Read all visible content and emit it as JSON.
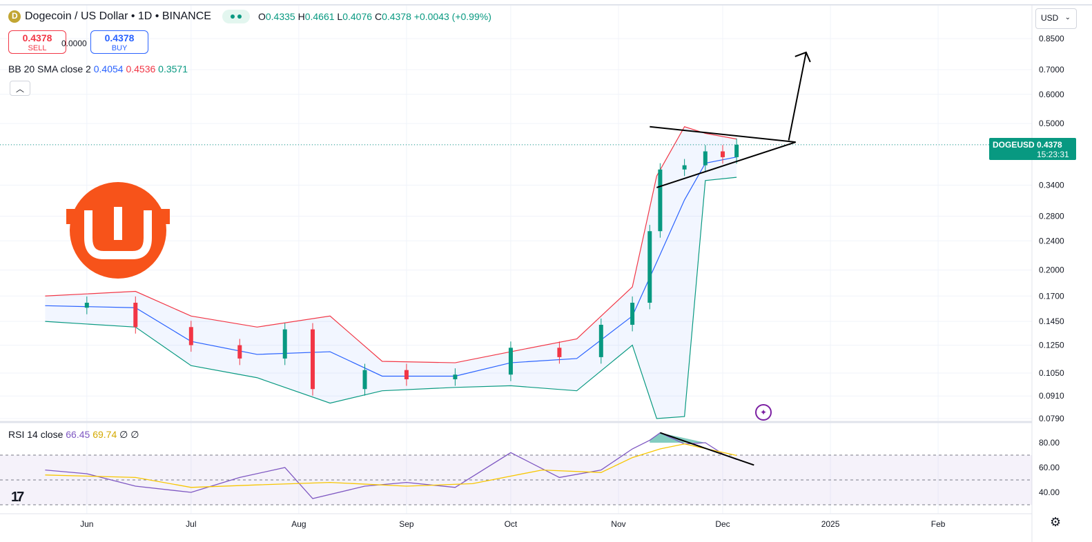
{
  "header": {
    "title": "Dogecoin / US Dollar • 1D • BINANCE",
    "ohlc": {
      "o_label": "O",
      "o": "0.4335",
      "h_label": "H",
      "h": "0.4661",
      "l_label": "L",
      "l": "0.4076",
      "c_label": "C",
      "c": "0.4378",
      "change": "+0.0043 (+0.99%)"
    }
  },
  "trade": {
    "sell_price": "0.4378",
    "sell_label": "SELL",
    "spread": "0.0000",
    "buy_price": "0.4378",
    "buy_label": "BUY"
  },
  "indicators": {
    "bb_label": "BB 20 SMA close 2",
    "bb_basis": "0.4054",
    "bb_upper": "0.4536",
    "bb_lower": "0.3571",
    "rsi_label": "RSI 14 close",
    "rsi_value": "66.45",
    "rsi_ma": "69.74",
    "rsi_extra": "∅ ∅"
  },
  "currency_button": "USD",
  "last_price_tag": {
    "symbol": "DOGEUSD",
    "price": "0.4378",
    "countdown": "15:23:31"
  },
  "colors": {
    "up": "#089981",
    "down": "#f23645",
    "bb_upper": "#f23645",
    "bb_basis": "#2962ff",
    "bb_lower": "#089981",
    "rsi_line": "#7e57c2",
    "rsi_ma": "#f7c600",
    "logo": "#f7531a"
  },
  "icons": [
    "coin-icon",
    "share-icon",
    "collapse-chevron-icon",
    "chevron-down-icon",
    "brand-logo",
    "tradingview-logo",
    "settings-gear-icon",
    "sparkle-icon"
  ],
  "chart_data": [
    {
      "type": "candlestick",
      "title": "Dogecoin / US Dollar • 1D • BINANCE",
      "y_scale": "log",
      "ylim": [
        0.079,
        0.85
      ],
      "y_ticks": [
        "0.8500",
        "0.7000",
        "0.6000",
        "0.5000",
        "0.4378",
        "0.3400",
        "0.2800",
        "0.2400",
        "0.2000",
        "0.1700",
        "0.1450",
        "0.1250",
        "0.1050",
        "0.0910",
        "0.0790"
      ],
      "x_ticks": [
        "Jun",
        "Jul",
        "Aug",
        "Sep",
        "Oct",
        "Nov",
        "Dec",
        "2025",
        "Feb"
      ],
      "series": [
        {
          "name": "DOGEUSD",
          "x": [
            "2024-05-20",
            "2024-06-01",
            "2024-06-15",
            "2024-07-01",
            "2024-07-15",
            "2024-07-28",
            "2024-08-05",
            "2024-08-20",
            "2024-09-01",
            "2024-09-15",
            "2024-10-01",
            "2024-10-15",
            "2024-10-27",
            "2024-11-05",
            "2024-11-10",
            "2024-11-13",
            "2024-11-20",
            "2024-11-26",
            "2024-12-01",
            "2024-12-05"
          ],
          "close": [
            0.158,
            0.163,
            0.14,
            0.125,
            0.115,
            0.138,
            0.095,
            0.107,
            0.101,
            0.104,
            0.123,
            0.116,
            0.142,
            0.163,
            0.255,
            0.375,
            0.385,
            0.42,
            0.405,
            0.4378
          ]
        },
        {
          "name": "BB upper",
          "x": [
            "2024-05-20",
            "2024-06-15",
            "2024-07-01",
            "2024-07-20",
            "2024-08-10",
            "2024-08-25",
            "2024-09-15",
            "2024-10-01",
            "2024-10-20",
            "2024-11-05",
            "2024-11-12",
            "2024-11-20",
            "2024-11-26",
            "2024-12-05"
          ],
          "values": [
            0.17,
            0.175,
            0.15,
            0.14,
            0.15,
            0.113,
            0.112,
            0.12,
            0.13,
            0.18,
            0.36,
            0.49,
            0.47,
            0.4536
          ]
        },
        {
          "name": "BB basis",
          "x": [
            "2024-05-20",
            "2024-06-15",
            "2024-07-01",
            "2024-07-20",
            "2024-08-10",
            "2024-08-25",
            "2024-09-15",
            "2024-10-01",
            "2024-10-20",
            "2024-11-05",
            "2024-11-12",
            "2024-11-20",
            "2024-11-26",
            "2024-12-05"
          ],
          "values": [
            0.16,
            0.158,
            0.128,
            0.118,
            0.12,
            0.103,
            0.103,
            0.112,
            0.115,
            0.15,
            0.21,
            0.31,
            0.39,
            0.4054
          ]
        },
        {
          "name": "BB lower",
          "x": [
            "2024-05-20",
            "2024-06-15",
            "2024-07-01",
            "2024-07-20",
            "2024-08-10",
            "2024-08-25",
            "2024-09-15",
            "2024-10-01",
            "2024-10-20",
            "2024-11-05",
            "2024-11-12",
            "2024-11-20",
            "2024-11-26",
            "2024-12-05"
          ],
          "values": [
            0.145,
            0.14,
            0.11,
            0.102,
            0.087,
            0.094,
            0.096,
            0.097,
            0.094,
            0.125,
            0.079,
            0.08,
            0.35,
            0.3571
          ]
        }
      ],
      "annotations": [
        "symmetrical triangle",
        "breakout arrow"
      ]
    },
    {
      "type": "line",
      "title": "RSI 14 close",
      "ylim": [
        30,
        90
      ],
      "y_ticks": [
        "80.00",
        "60.00",
        "40.00"
      ],
      "bands": [
        30,
        70
      ],
      "series": [
        {
          "name": "RSI",
          "x": [
            "2024-05-20",
            "2024-06-01",
            "2024-06-15",
            "2024-07-01",
            "2024-07-15",
            "2024-07-28",
            "2024-08-05",
            "2024-08-20",
            "2024-09-01",
            "2024-09-15",
            "2024-10-01",
            "2024-10-15",
            "2024-10-27",
            "2024-11-05",
            "2024-11-10",
            "2024-11-13",
            "2024-11-20",
            "2024-11-26",
            "2024-12-01",
            "2024-12-05"
          ],
          "values": [
            58,
            55,
            45,
            40,
            52,
            60,
            35,
            45,
            48,
            44,
            72,
            52,
            58,
            75,
            82,
            88,
            79,
            80,
            71,
            66.45
          ]
        },
        {
          "name": "RSI MA",
          "x": [
            "2024-05-20",
            "2024-06-15",
            "2024-07-01",
            "2024-07-20",
            "2024-08-10",
            "2024-09-01",
            "2024-09-20",
            "2024-10-10",
            "2024-10-27",
            "2024-11-05",
            "2024-11-13",
            "2024-11-20",
            "2024-12-05"
          ],
          "values": [
            54,
            52,
            44,
            46,
            48,
            45,
            47,
            58,
            56,
            68,
            75,
            79,
            69.74
          ]
        }
      ]
    }
  ]
}
